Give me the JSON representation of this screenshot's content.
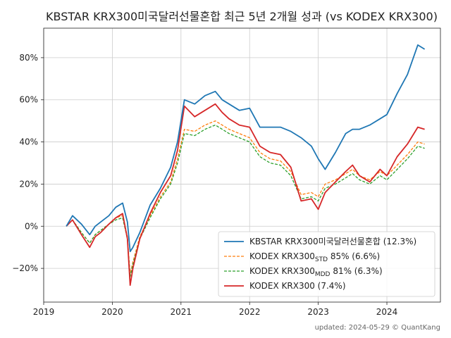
{
  "footer": "updated: 2024-05-29 © QuantKang",
  "chart_data": {
    "type": "line",
    "title": "KBSTAR KRX300미국달러선물혼합 최근 5년 2개월 성과 (vs KODEX KRX300)",
    "xlabel": "",
    "ylabel": "",
    "x_ticks": [
      "2019",
      "2020",
      "2021",
      "2022",
      "2023",
      "2024"
    ],
    "y_ticks": [
      "−20%",
      "0%",
      "20%",
      "40%",
      "60%",
      "80%"
    ],
    "ylim": [
      -36,
      94
    ],
    "xlim": [
      2019.0,
      2024.78
    ],
    "grid": true,
    "legend_position": "lower-right",
    "x": [
      2019.33,
      2019.42,
      2019.55,
      2019.67,
      2019.75,
      2019.83,
      2019.95,
      2020.05,
      2020.15,
      2020.22,
      2020.26,
      2020.3,
      2020.4,
      2020.55,
      2020.7,
      2020.85,
      2020.95,
      2021.05,
      2021.2,
      2021.35,
      2021.5,
      2021.6,
      2021.7,
      2021.85,
      2022.0,
      2022.15,
      2022.3,
      2022.45,
      2022.6,
      2022.75,
      2022.9,
      2023.0,
      2023.1,
      2023.25,
      2023.4,
      2023.5,
      2023.6,
      2023.75,
      2023.9,
      2024.0,
      2024.15,
      2024.3,
      2024.45,
      2024.55
    ],
    "series": [
      {
        "name": "KBSTAR KRX300미국달러선물혼합 (12.3%)",
        "color": "#1f77b4",
        "values": [
          0,
          5,
          1,
          -4,
          0,
          2,
          5,
          9,
          11,
          2,
          -12,
          -10,
          -3,
          10,
          18,
          28,
          40,
          60,
          58,
          62,
          64,
          60,
          58,
          55,
          56,
          47,
          47,
          47,
          45,
          42,
          38,
          32,
          27,
          35,
          44,
          46,
          46,
          48,
          51,
          53,
          63,
          72,
          86,
          84
        ]
      },
      {
        "name": "KODEX KRX300_STD 85% (6.6%)",
        "name_main": "KODEX KRX300",
        "name_sub": "STD",
        "name_rest": " 85% (6.6%)",
        "color": "#ff7f0e",
        "values": [
          0,
          3,
          -3,
          -8,
          -4,
          -2,
          1,
          4,
          5,
          -5,
          -23,
          -17,
          -5,
          5,
          14,
          21,
          32,
          46,
          45,
          48,
          50,
          48,
          46,
          44,
          42,
          35,
          32,
          31,
          26,
          15,
          16,
          14,
          20,
          22,
          25,
          27,
          24,
          22,
          26,
          24,
          29,
          34,
          40,
          39
        ]
      },
      {
        "name": "KODEX KRX300_MDD 81% (6.3%)",
        "name_main": "KODEX KRX300",
        "name_sub": "MDD",
        "name_rest": " 81% (6.3%)",
        "color": "#2ca02c",
        "values": [
          0,
          3,
          -3,
          -8,
          -4,
          -2,
          1,
          3,
          4,
          -6,
          -24,
          -18,
          -6,
          4,
          13,
          20,
          30,
          44,
          43,
          46,
          48,
          46,
          44,
          42,
          40,
          33,
          30,
          29,
          24,
          13,
          14,
          12,
          18,
          20,
          23,
          25,
          22,
          20,
          24,
          22,
          27,
          32,
          38,
          37
        ]
      },
      {
        "name": "KODEX KRX300 (7.4%)",
        "color": "#d62728",
        "values": [
          0,
          3,
          -4,
          -10,
          -5,
          -3,
          1,
          4,
          6,
          -6,
          -28,
          -20,
          -6,
          6,
          16,
          24,
          36,
          57,
          52,
          55,
          58,
          54,
          51,
          48,
          47,
          38,
          35,
          34,
          28,
          12,
          13,
          8,
          16,
          21,
          26,
          29,
          24,
          21,
          27,
          24,
          33,
          39,
          47,
          46
        ]
      }
    ]
  }
}
